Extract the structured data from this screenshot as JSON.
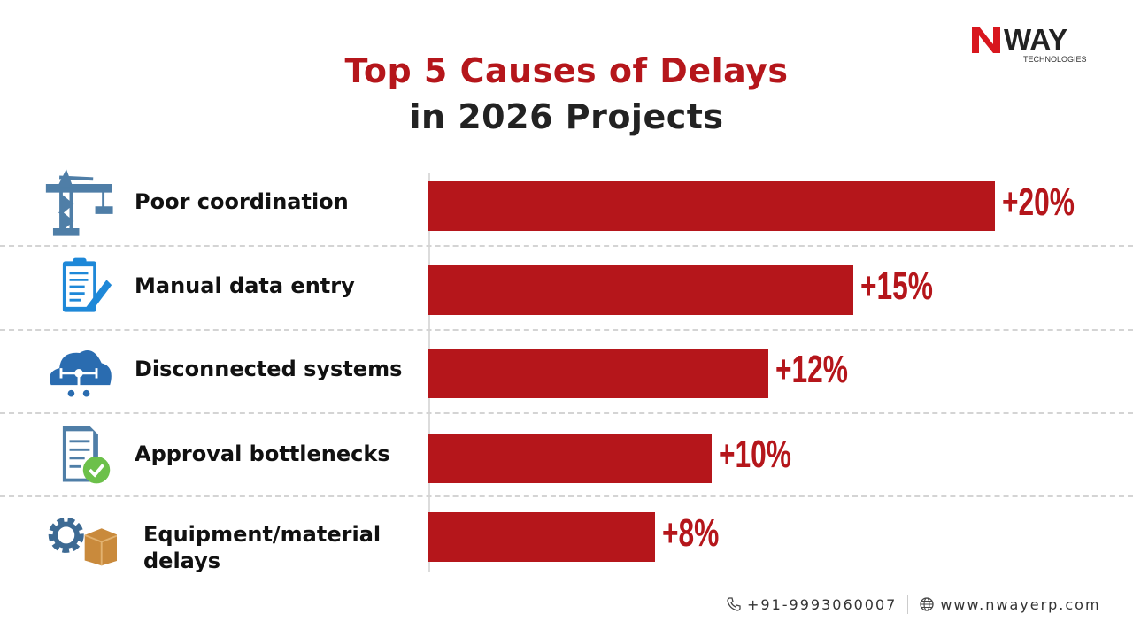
{
  "brand": {
    "name": "NWAY",
    "sub": "TECHNOLOGIES",
    "accent": "#b5161b"
  },
  "chart_data": {
    "type": "bar",
    "orientation": "horizontal",
    "title_line1": "Top 5 Causes of Delays",
    "title_line2": "in 2026 Projects",
    "categories": [
      "Poor coordination",
      "Manual data entry",
      "Disconnected systems",
      "Approval bottlenecks",
      "Equipment/material delays"
    ],
    "values": [
      20,
      15,
      12,
      10,
      8
    ],
    "value_labels": [
      "+20%",
      "+15%",
      "+12%",
      "+10%",
      "+8%"
    ],
    "icons": [
      "crane-icon",
      "clipboard-pencil-icon",
      "cloud-network-icon",
      "document-check-icon",
      "gear-box-icon"
    ],
    "bar_color": "#b5161b",
    "grid": false
  },
  "footer": {
    "phone": "+91-9993060007",
    "website": "www.nwayerp.com"
  }
}
